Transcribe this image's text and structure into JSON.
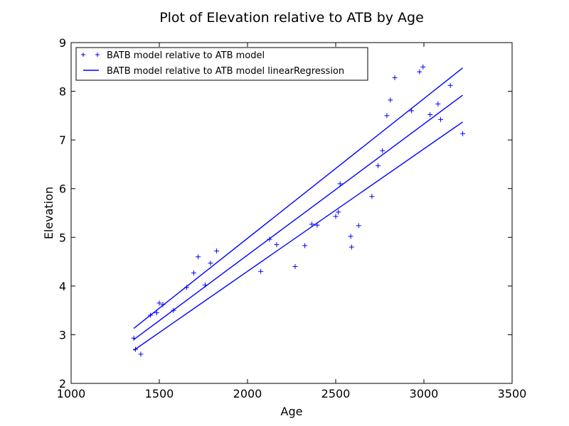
{
  "chart_data": {
    "type": "scatter",
    "title": "Plot of Elevation relative to ATB by Age",
    "xlabel": "Age",
    "ylabel": "Elevation",
    "xlim": [
      1000,
      3500
    ],
    "ylim": [
      2,
      9
    ],
    "xticks": [
      1000,
      1500,
      2000,
      2500,
      3000,
      3500
    ],
    "yticks": [
      2,
      3,
      4,
      5,
      6,
      7,
      8,
      9
    ],
    "grid": false,
    "legend_position": "top-left",
    "series": [
      {
        "name": "BATB model relative to ATB model",
        "kind": "scatter",
        "marker": "plus",
        "color": "#0000ff",
        "points": [
          [
            1355,
            2.93
          ],
          [
            1365,
            2.7
          ],
          [
            1395,
            2.6
          ],
          [
            1450,
            3.4
          ],
          [
            1485,
            3.45
          ],
          [
            1500,
            3.65
          ],
          [
            1520,
            3.62
          ],
          [
            1580,
            3.5
          ],
          [
            1655,
            3.97
          ],
          [
            1695,
            4.27
          ],
          [
            1720,
            4.6
          ],
          [
            1760,
            4.02
          ],
          [
            1790,
            4.47
          ],
          [
            1825,
            4.72
          ],
          [
            2075,
            4.3
          ],
          [
            2125,
            4.96
          ],
          [
            2165,
            4.85
          ],
          [
            2270,
            4.4
          ],
          [
            2325,
            4.83
          ],
          [
            2365,
            5.27
          ],
          [
            2395,
            5.25
          ],
          [
            2500,
            5.43
          ],
          [
            2515,
            5.52
          ],
          [
            2525,
            6.1
          ],
          [
            2585,
            5.02
          ],
          [
            2590,
            4.8
          ],
          [
            2630,
            5.24
          ],
          [
            2705,
            5.84
          ],
          [
            2740,
            6.47
          ],
          [
            2765,
            6.78
          ],
          [
            2790,
            7.5
          ],
          [
            2810,
            7.82
          ],
          [
            2835,
            8.28
          ],
          [
            2930,
            7.6
          ],
          [
            2975,
            8.4
          ],
          [
            2995,
            8.5
          ],
          [
            3035,
            7.52
          ],
          [
            3080,
            7.74
          ],
          [
            3095,
            7.42
          ],
          [
            3150,
            8.12
          ],
          [
            3220,
            7.13
          ]
        ]
      },
      {
        "name": "BATB model relative to ATB model linearRegression",
        "kind": "line",
        "color": "#0000ff",
        "lines": [
          {
            "x": [
              1355,
              3220
            ],
            "y": [
              3.13,
              8.48
            ]
          },
          {
            "x": [
              1355,
              3220
            ],
            "y": [
              2.9,
              7.92
            ]
          },
          {
            "x": [
              1355,
              3220
            ],
            "y": [
              2.68,
              7.37
            ]
          }
        ]
      }
    ]
  }
}
